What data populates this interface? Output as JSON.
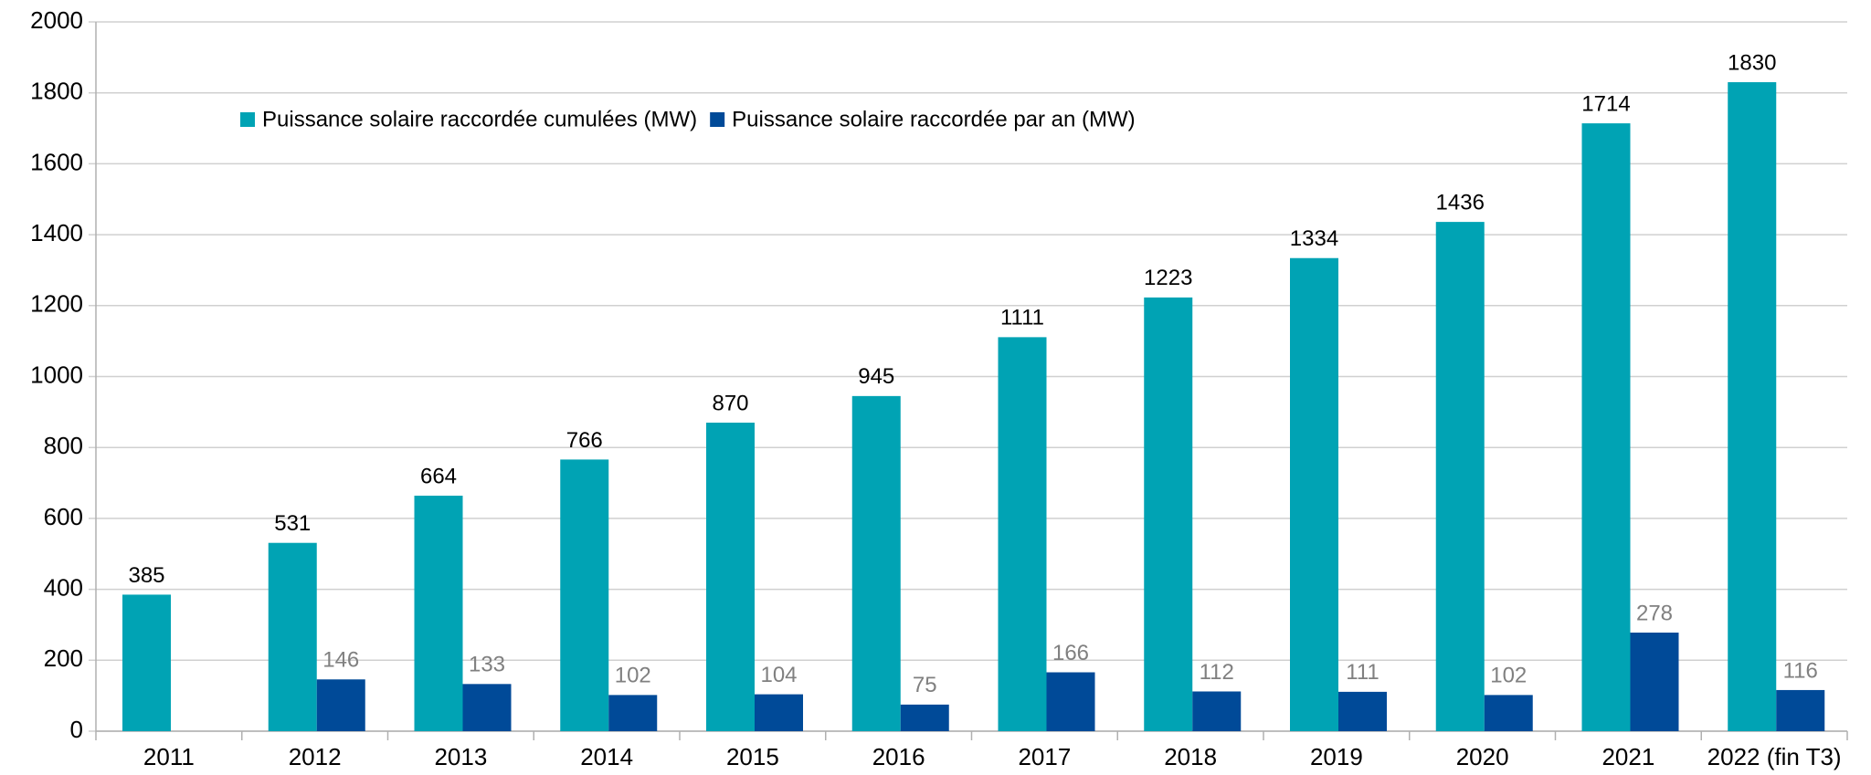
{
  "chart_data": {
    "type": "bar",
    "categories": [
      "2011",
      "2012",
      "2013",
      "2014",
      "2015",
      "2016",
      "2017",
      "2018",
      "2019",
      "2020",
      "2021",
      "2022 (fin T3)"
    ],
    "series": [
      {
        "name": "Puissance solaire raccordée cumulées (MW)",
        "color": "#00a3b4",
        "values": [
          385,
          531,
          664,
          766,
          870,
          945,
          1111,
          1223,
          1334,
          1436,
          1714,
          1830
        ]
      },
      {
        "name": "Puissance solaire raccordée par an (MW)",
        "color": "#004a98",
        "values": [
          null,
          146,
          133,
          102,
          104,
          75,
          166,
          112,
          111,
          102,
          278,
          116
        ]
      }
    ],
    "ylim": [
      0,
      2000
    ],
    "yticks": [
      0,
      200,
      400,
      600,
      800,
      1000,
      1200,
      1400,
      1600,
      1800,
      2000
    ],
    "grid": true
  }
}
